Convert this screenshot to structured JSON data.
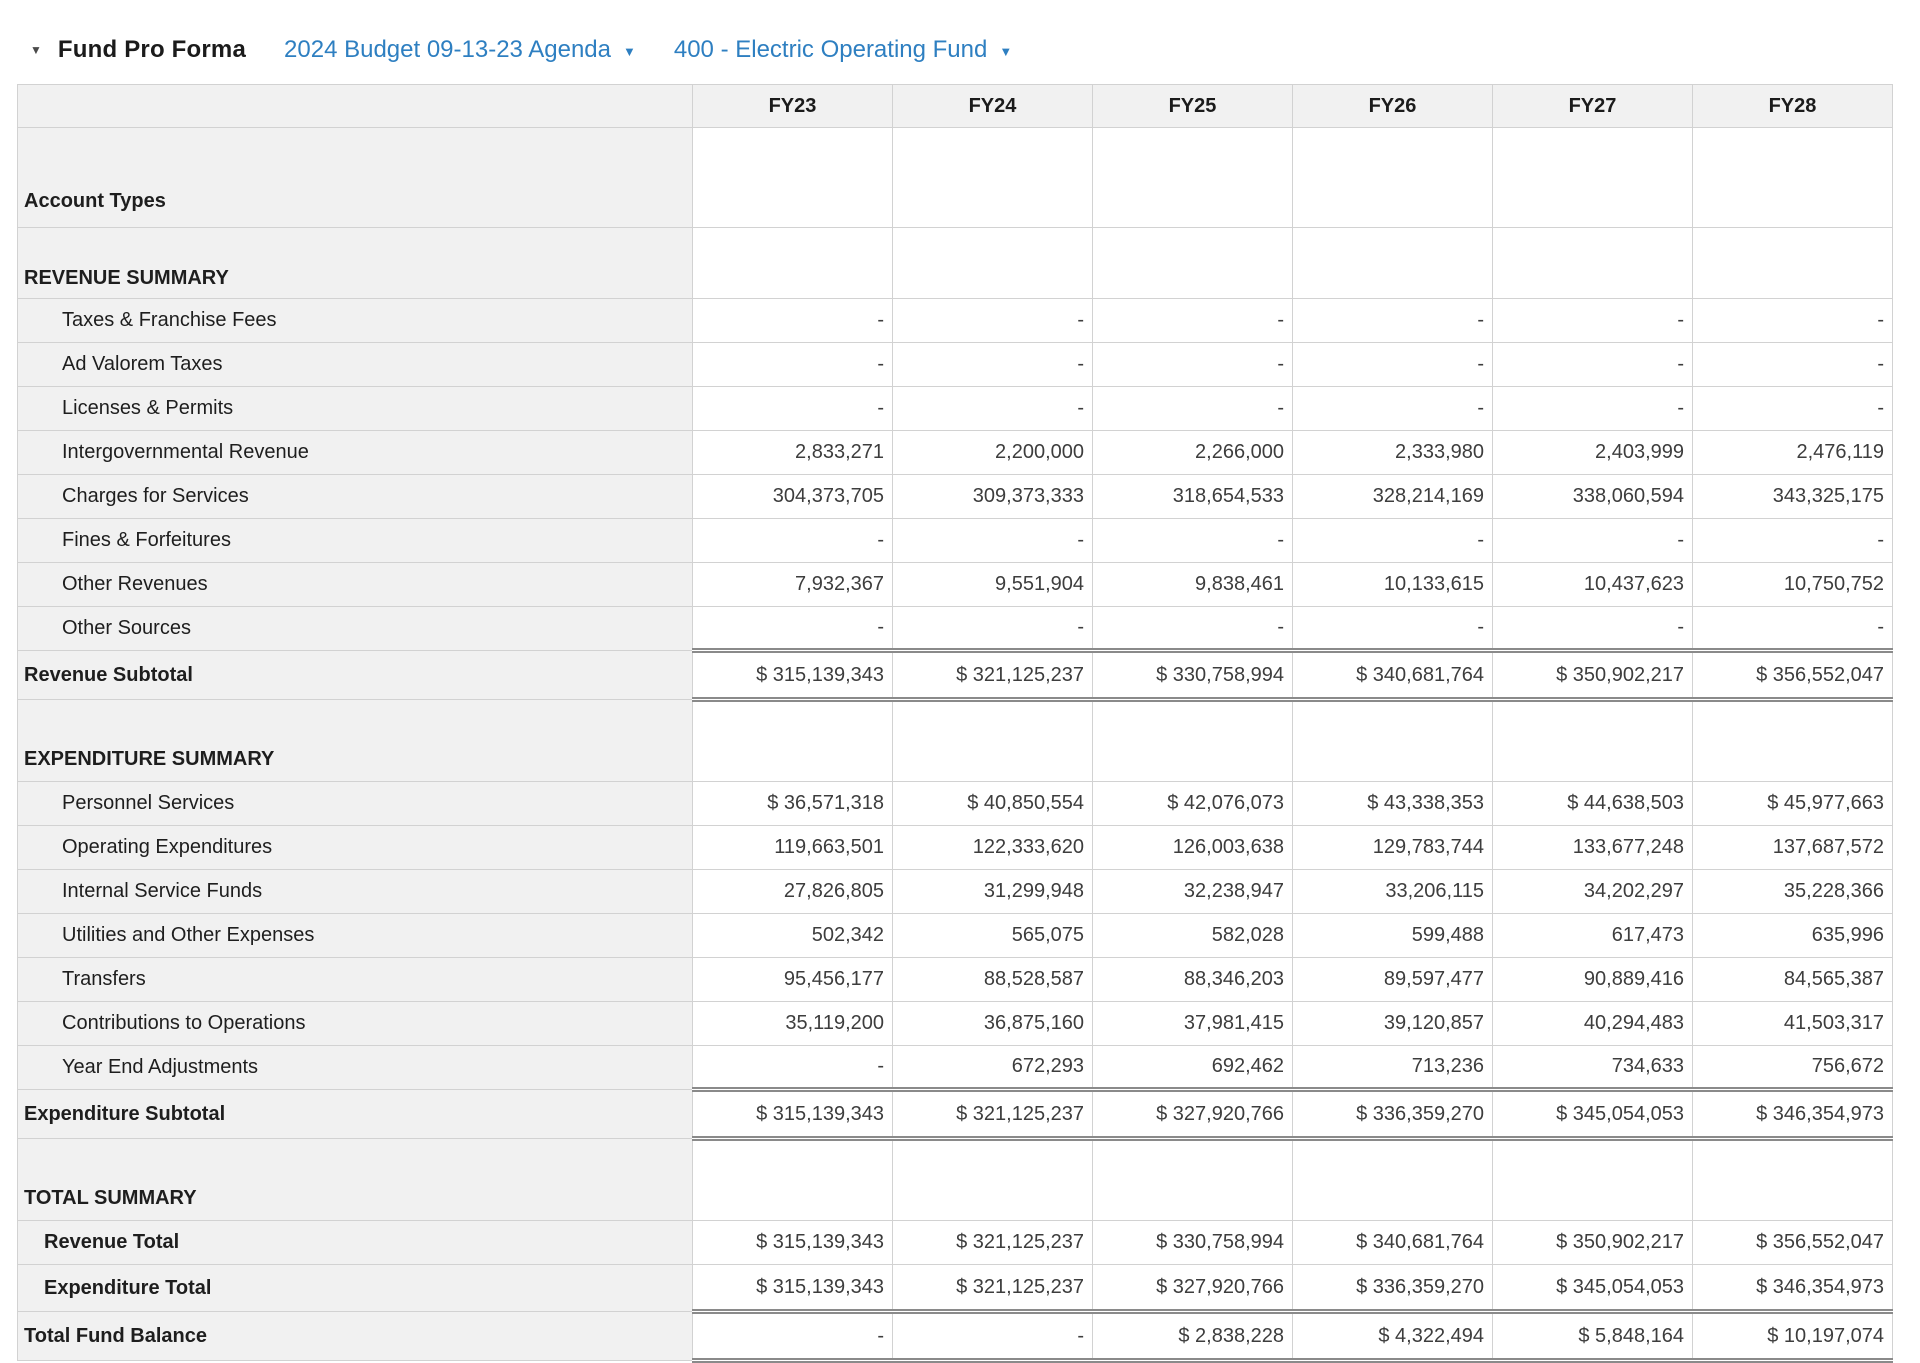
{
  "header": {
    "collapse_icon": "▼",
    "title": "Fund Pro Forma",
    "budget_dropdown": {
      "label": "2024 Budget 09-13-23 Agenda",
      "caret_icon": "▼"
    },
    "fund_dropdown": {
      "label": "400 - Electric Operating Fund",
      "caret_icon": "▼"
    }
  },
  "colors": {
    "link_blue": "#2e7fc1",
    "header_bg": "#f1f1f1",
    "grid_line": "#d2d2d2",
    "double_rule": "#8a8a8a"
  },
  "table": {
    "columns": [
      "FY23",
      "FY24",
      "FY25",
      "FY26",
      "FY27",
      "FY28"
    ],
    "rows": [
      {
        "label": "Account Types",
        "bold": true,
        "tall": "xl",
        "indent": 0,
        "values": [
          "",
          "",
          "",
          "",
          "",
          ""
        ]
      },
      {
        "label": "REVENUE SUMMARY",
        "bold": true,
        "tall": "md",
        "indent": 0,
        "values": [
          "",
          "",
          "",
          "",
          "",
          ""
        ]
      },
      {
        "label": "Taxes & Franchise Fees",
        "indent": 1,
        "values": [
          "-",
          "-",
          "-",
          "-",
          "-",
          "-"
        ]
      },
      {
        "label": "Ad Valorem Taxes",
        "indent": 1,
        "values": [
          "-",
          "-",
          "-",
          "-",
          "-",
          "-"
        ]
      },
      {
        "label": "Licenses & Permits",
        "indent": 1,
        "values": [
          "-",
          "-",
          "-",
          "-",
          "-",
          "-"
        ]
      },
      {
        "label": "Intergovernmental Revenue",
        "indent": 1,
        "values": [
          "2,833,271",
          "2,200,000",
          "2,266,000",
          "2,333,980",
          "2,403,999",
          "2,476,119"
        ]
      },
      {
        "label": "Charges for Services",
        "indent": 1,
        "values": [
          "304,373,705",
          "309,373,333",
          "318,654,533",
          "328,214,169",
          "338,060,594",
          "343,325,175"
        ]
      },
      {
        "label": "Fines & Forfeitures",
        "indent": 1,
        "values": [
          "-",
          "-",
          "-",
          "-",
          "-",
          "-"
        ]
      },
      {
        "label": "Other Revenues",
        "indent": 1,
        "values": [
          "7,932,367",
          "9,551,904",
          "9,838,461",
          "10,133,615",
          "10,437,623",
          "10,750,752"
        ]
      },
      {
        "label": "Other Sources",
        "indent": 1,
        "values": [
          "-",
          "-",
          "-",
          "-",
          "-",
          "-"
        ]
      },
      {
        "label": "Revenue Subtotal",
        "bold": true,
        "indent": 0,
        "subtotal": true,
        "dbl_top": true,
        "dbl_bottom": true,
        "values": [
          "$ 315,139,343",
          "$ 321,125,237",
          "$ 330,758,994",
          "$ 340,681,764",
          "$ 350,902,217",
          "$ 356,552,047"
        ]
      },
      {
        "label": "EXPENDITURE SUMMARY",
        "bold": true,
        "tall": "lg",
        "indent": 0,
        "values": [
          "",
          "",
          "",
          "",
          "",
          ""
        ]
      },
      {
        "label": "Personnel Services",
        "indent": 1,
        "values": [
          "$ 36,571,318",
          "$ 40,850,554",
          "$ 42,076,073",
          "$ 43,338,353",
          "$ 44,638,503",
          "$ 45,977,663"
        ]
      },
      {
        "label": "Operating Expenditures",
        "indent": 1,
        "values": [
          "119,663,501",
          "122,333,620",
          "126,003,638",
          "129,783,744",
          "133,677,248",
          "137,687,572"
        ]
      },
      {
        "label": "Internal Service Funds",
        "indent": 1,
        "values": [
          "27,826,805",
          "31,299,948",
          "32,238,947",
          "33,206,115",
          "34,202,297",
          "35,228,366"
        ]
      },
      {
        "label": "Utilities and Other Expenses",
        "indent": 1,
        "values": [
          "502,342",
          "565,075",
          "582,028",
          "599,488",
          "617,473",
          "635,996"
        ]
      },
      {
        "label": "Transfers",
        "indent": 1,
        "values": [
          "95,456,177",
          "88,528,587",
          "88,346,203",
          "89,597,477",
          "90,889,416",
          "84,565,387"
        ]
      },
      {
        "label": "Contributions to Operations",
        "indent": 1,
        "values": [
          "35,119,200",
          "36,875,160",
          "37,981,415",
          "39,120,857",
          "40,294,483",
          "41,503,317"
        ]
      },
      {
        "label": "Year End Adjustments",
        "indent": 1,
        "values": [
          "-",
          "672,293",
          "692,462",
          "713,236",
          "734,633",
          "756,672"
        ]
      },
      {
        "label": "Expenditure Subtotal",
        "bold": true,
        "indent": 0,
        "subtotal": true,
        "dbl_top": true,
        "dbl_bottom": true,
        "values": [
          "$ 315,139,343",
          "$ 321,125,237",
          "$ 327,920,766",
          "$ 336,359,270",
          "$ 345,054,053",
          "$ 346,354,973"
        ]
      },
      {
        "label": "TOTAL SUMMARY",
        "bold": true,
        "tall": "lg",
        "indent": 0,
        "values": [
          "",
          "",
          "",
          "",
          "",
          ""
        ]
      },
      {
        "label": "Revenue Total",
        "bold": true,
        "indent": 2,
        "values": [
          "$ 315,139,343",
          "$ 321,125,237",
          "$ 330,758,994",
          "$ 340,681,764",
          "$ 350,902,217",
          "$ 356,552,047"
        ]
      },
      {
        "label": "Expenditure Total",
        "bold": true,
        "indent": 2,
        "subtotal": true,
        "dbl_bottom": true,
        "values": [
          "$ 315,139,343",
          "$ 321,125,237",
          "$ 327,920,766",
          "$ 336,359,270",
          "$ 345,054,053",
          "$ 346,354,973"
        ]
      },
      {
        "label": "Total Fund Balance",
        "bold": true,
        "indent": 0,
        "subtotal": true,
        "dbl_bottom": true,
        "values": [
          "-",
          "-",
          "$ 2,838,228",
          "$ 4,322,494",
          "$ 5,848,164",
          "$ 10,197,074"
        ]
      }
    ]
  }
}
